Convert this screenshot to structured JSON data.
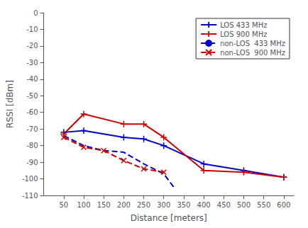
{
  "chart_data": {
    "type": "line",
    "xlabel": "Distance [meters]",
    "ylabel": "RSSI [dBm]",
    "xlim": [
      0,
      625
    ],
    "ylim": [
      -110,
      0
    ],
    "xticks": [
      50,
      100,
      150,
      200,
      250,
      300,
      350,
      400,
      450,
      500,
      550,
      600
    ],
    "yticks": [
      0,
      -10,
      -20,
      -30,
      -40,
      -50,
      -60,
      -70,
      -80,
      -90,
      -100,
      -110
    ],
    "grid": false,
    "legend": "upper right",
    "series": [
      {
        "name": "LOS 433 MHz",
        "color": "#0000cc",
        "marker": "plus",
        "line_style": "solid",
        "x": [
          50,
          100,
          200,
          250,
          300,
          400,
          500,
          600
        ],
        "values": [
          -72,
          -71,
          -75,
          -76,
          -80,
          -91,
          -95,
          -99
        ]
      },
      {
        "name": "LOS 900 MHz",
        "color": "#cc0000",
        "marker": "plus",
        "line_style": "solid",
        "x": [
          50,
          100,
          200,
          250,
          300,
          400,
          500,
          600
        ],
        "values": [
          -73,
          -61,
          -67,
          -67,
          -75,
          -95,
          -96,
          -99
        ]
      },
      {
        "name": "non-LOS  433 MHz",
        "color": "#0000cc",
        "marker": "none",
        "line_style": "dashed",
        "x": [
          50,
          100,
          150,
          200,
          250,
          300,
          325
        ],
        "values": [
          -74,
          -80,
          -83,
          -84,
          -91,
          -97,
          -105
        ]
      },
      {
        "name": "non-LOS  900 MHz",
        "color": "#cc0000",
        "marker": "x",
        "line_style": "dashed",
        "x": [
          50,
          100,
          150,
          200,
          250,
          300
        ],
        "values": [
          -75,
          -81,
          -83,
          -89,
          -94,
          -96
        ]
      }
    ]
  }
}
